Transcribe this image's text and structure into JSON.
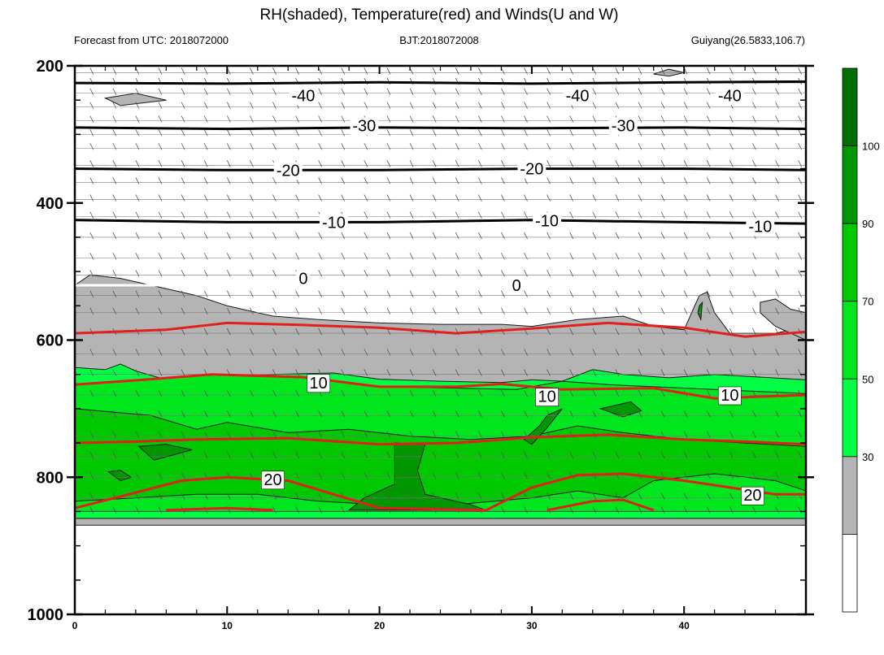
{
  "chart_data": {
    "type": "heatmap",
    "title": "RH(shaded), Temperature(red) and Winds(U and W)",
    "subtitles": {
      "left": "Forecast from UTC: 2018072000",
      "center": "BJT:2018072008",
      "right": "Guiyang(26.5833,106.7)"
    },
    "xlim": [
      0,
      48
    ],
    "ylim": [
      1000,
      200
    ],
    "x_ticks": [
      0,
      10,
      20,
      30,
      40
    ],
    "y_ticks": [
      200,
      400,
      600,
      800,
      1000
    ],
    "colorbar": {
      "levels": [
        30,
        50,
        70,
        90,
        100
      ],
      "colors": [
        "#ffffff",
        "#b4b4b4",
        "#00ff44",
        "#00e61e",
        "#00c800",
        "#009600",
        "#006e00"
      ]
    },
    "rh_regions": [
      {
        "level": "gray",
        "points": [
          [
            0,
            520
          ],
          [
            1,
            505
          ],
          [
            3,
            510
          ],
          [
            5,
            520
          ],
          [
            8,
            535
          ],
          [
            10,
            550
          ],
          [
            13,
            565
          ],
          [
            16,
            570
          ],
          [
            20,
            575
          ],
          [
            24,
            577
          ],
          [
            28,
            577
          ],
          [
            30,
            580
          ],
          [
            33,
            570
          ],
          [
            36,
            565
          ],
          [
            38,
            580
          ],
          [
            40,
            585
          ],
          [
            40.5,
            560
          ],
          [
            41,
            535
          ],
          [
            41.5,
            530
          ],
          [
            42,
            560
          ],
          [
            43,
            590
          ],
          [
            46,
            590
          ],
          [
            48,
            580
          ],
          [
            48,
            700
          ],
          [
            0,
            700
          ]
        ]
      },
      {
        "level": "gray",
        "points": [
          [
            45,
            545
          ],
          [
            46,
            540
          ],
          [
            47,
            555
          ],
          [
            48,
            560
          ],
          [
            48,
            600
          ],
          [
            46,
            580
          ],
          [
            45,
            560
          ]
        ]
      },
      {
        "level": "gray",
        "points": [
          [
            2,
            247
          ],
          [
            4,
            240
          ],
          [
            6,
            250
          ],
          [
            3,
            258
          ]
        ]
      },
      {
        "level": "gray",
        "points": [
          [
            38,
            212
          ],
          [
            39,
            205
          ],
          [
            40,
            210
          ],
          [
            39,
            215
          ]
        ]
      },
      {
        "level": "gray",
        "points": [
          [
            0,
            860
          ],
          [
            48,
            860
          ],
          [
            48,
            870
          ],
          [
            0,
            870
          ]
        ]
      },
      {
        "level": "green50",
        "points": [
          [
            0,
            640
          ],
          [
            2,
            643
          ],
          [
            3,
            635
          ],
          [
            4,
            645
          ],
          [
            6,
            658
          ],
          [
            9,
            653
          ],
          [
            13,
            650
          ],
          [
            17,
            648
          ],
          [
            20,
            657
          ],
          [
            24,
            660
          ],
          [
            28,
            662
          ],
          [
            30,
            658
          ],
          [
            32,
            660
          ],
          [
            34,
            643
          ],
          [
            36,
            650
          ],
          [
            39,
            655
          ],
          [
            42,
            650
          ],
          [
            48,
            658
          ],
          [
            48,
            860
          ],
          [
            0,
            860
          ]
        ]
      },
      {
        "level": "green70",
        "points": [
          [
            0,
            664
          ],
          [
            4,
            658
          ],
          [
            9,
            650
          ],
          [
            15,
            655
          ],
          [
            20,
            668
          ],
          [
            25,
            670
          ],
          [
            29,
            672
          ],
          [
            32,
            660
          ],
          [
            35,
            665
          ],
          [
            38,
            668
          ],
          [
            42,
            672
          ],
          [
            48,
            678
          ],
          [
            48,
            850
          ],
          [
            0,
            850
          ]
        ]
      },
      {
        "level": "green90",
        "points": [
          [
            0,
            700
          ],
          [
            5,
            710
          ],
          [
            8,
            730
          ],
          [
            10,
            720
          ],
          [
            14,
            735
          ],
          [
            18,
            730
          ],
          [
            22,
            740
          ],
          [
            26,
            745
          ],
          [
            30,
            740
          ],
          [
            33,
            725
          ],
          [
            36,
            735
          ],
          [
            40,
            745
          ],
          [
            44,
            750
          ],
          [
            48,
            755
          ],
          [
            48,
            820
          ],
          [
            46,
            805
          ],
          [
            42,
            795
          ],
          [
            38,
            805
          ],
          [
            36,
            830
          ],
          [
            33,
            820
          ],
          [
            30,
            830
          ],
          [
            25,
            840
          ],
          [
            20,
            840
          ],
          [
            16,
            835
          ],
          [
            12,
            825
          ],
          [
            8,
            825
          ],
          [
            4,
            830
          ],
          [
            0,
            835
          ]
        ]
      },
      {
        "level": "green100",
        "points": [
          [
            21,
            750
          ],
          [
            23,
            752
          ],
          [
            22.5,
            790
          ],
          [
            23,
            825
          ],
          [
            26,
            840
          ],
          [
            27,
            848
          ],
          [
            18,
            848
          ],
          [
            19,
            830
          ],
          [
            21,
            810
          ]
        ]
      },
      {
        "level": "green100",
        "points": [
          [
            4.2,
            755
          ],
          [
            6,
            752
          ],
          [
            7.7,
            760
          ],
          [
            5.2,
            775
          ]
        ]
      },
      {
        "level": "green100",
        "points": [
          [
            2.2,
            792
          ],
          [
            3,
            790
          ],
          [
            3.7,
            800
          ],
          [
            3,
            805
          ]
        ]
      },
      {
        "level": "green100",
        "points": [
          [
            34.5,
            700
          ],
          [
            36.5,
            690
          ],
          [
            37.2,
            703
          ],
          [
            36,
            712
          ]
        ]
      },
      {
        "level": "green100",
        "points": [
          [
            31,
            710
          ],
          [
            32,
            700
          ],
          [
            31,
            728
          ],
          [
            30,
            752
          ],
          [
            29.5,
            745
          ],
          [
            30.5,
            725
          ]
        ]
      },
      {
        "level": "green100",
        "points": [
          [
            41,
            550
          ],
          [
            41.2,
            545
          ],
          [
            41.1,
            570
          ],
          [
            40.9,
            560
          ]
        ]
      }
    ],
    "temperature_isotherms": [
      {
        "value": -40,
        "points": [
          [
            0,
            225
          ],
          [
            10,
            226
          ],
          [
            20,
            224
          ],
          [
            30,
            226
          ],
          [
            40,
            224
          ],
          [
            48,
            223
          ]
        ],
        "labels": [
          [
            15,
            243
          ],
          [
            33,
            243
          ],
          [
            43,
            243
          ]
        ]
      },
      {
        "value": -30,
        "points": [
          [
            0,
            290
          ],
          [
            10,
            292
          ],
          [
            20,
            290
          ],
          [
            30,
            291
          ],
          [
            40,
            290
          ],
          [
            48,
            292
          ]
        ],
        "labels": [
          [
            19,
            287
          ],
          [
            36,
            287
          ]
        ]
      },
      {
        "value": -20,
        "points": [
          [
            0,
            350
          ],
          [
            10,
            352
          ],
          [
            20,
            352
          ],
          [
            30,
            350
          ],
          [
            40,
            350
          ],
          [
            48,
            352
          ]
        ],
        "labels": [
          [
            14,
            352
          ],
          [
            30,
            350
          ]
        ]
      },
      {
        "value": -10,
        "points": [
          [
            0,
            425
          ],
          [
            10,
            428
          ],
          [
            20,
            428
          ],
          [
            30,
            425
          ],
          [
            40,
            428
          ],
          [
            48,
            430
          ]
        ],
        "labels": [
          [
            17,
            428
          ],
          [
            31,
            426
          ],
          [
            45,
            434
          ]
        ]
      },
      {
        "value": 0,
        "points": [
          [
            0,
            520
          ],
          [
            5,
            520
          ],
          [
            10,
            520
          ],
          [
            20,
            520
          ],
          [
            30,
            520
          ],
          [
            40,
            520
          ],
          [
            48,
            520
          ]
        ],
        "labels": [
          [
            15,
            510
          ],
          [
            29,
            520
          ]
        ]
      }
    ],
    "temperature_labels": [
      {
        "text": "10",
        "x": 16,
        "y": 662
      },
      {
        "text": "10",
        "x": 31,
        "y": 682
      },
      {
        "text": "10",
        "x": 43,
        "y": 680
      },
      {
        "text": "20",
        "x": 13,
        "y": 803
      },
      {
        "text": "20",
        "x": 44.5,
        "y": 826
      }
    ]
  }
}
